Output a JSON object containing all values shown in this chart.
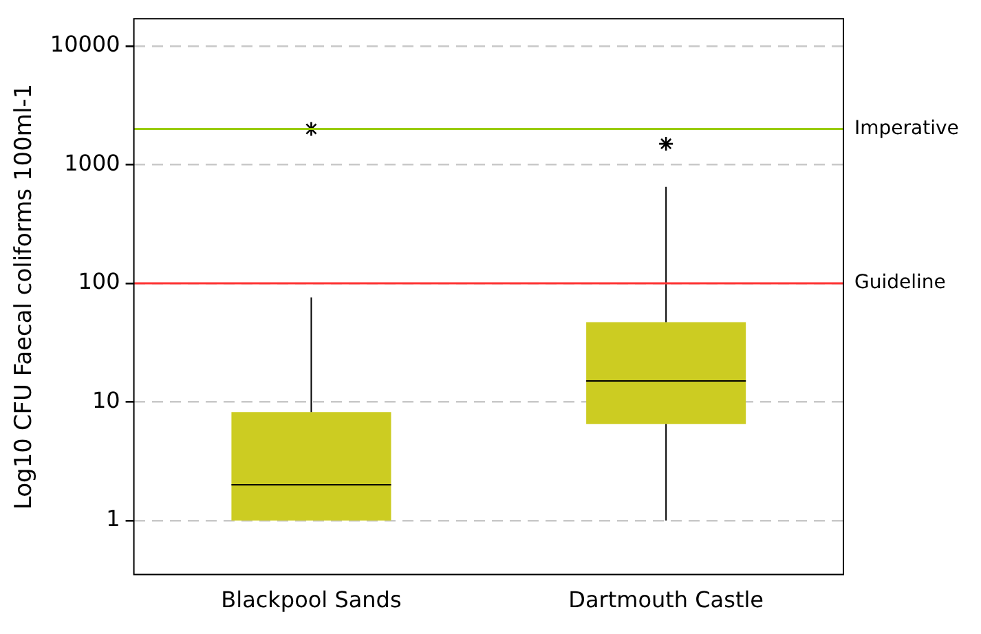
{
  "chart_data": {
    "type": "box",
    "ylabel": "Log10 CFU Faecal coliforms 100ml-1",
    "categories": [
      "Blackpool Sands",
      "Dartmouth Castle"
    ],
    "color": "#cccc22",
    "boxes": [
      {
        "low": 1,
        "q1": 1,
        "median": 2,
        "q3": 8.2,
        "high": 76,
        "outliers": [
          2000
        ]
      },
      {
        "low": 1,
        "q1": 6.5,
        "median": 15,
        "q3": 47,
        "high": 650,
        "outliers": [
          1500
        ]
      }
    ],
    "log": true,
    "ylim": [
      0.35,
      17000
    ],
    "yticks": [
      1,
      10,
      100,
      1000,
      10000
    ],
    "grid": "y",
    "marker": "star",
    "ref_lines": [
      {
        "axis": "y",
        "value": 2000,
        "label": "Imperative",
        "color": "#99cc00"
      },
      {
        "axis": "y",
        "value": 100,
        "label": "Guideline",
        "color": "#ff3333"
      }
    ]
  }
}
